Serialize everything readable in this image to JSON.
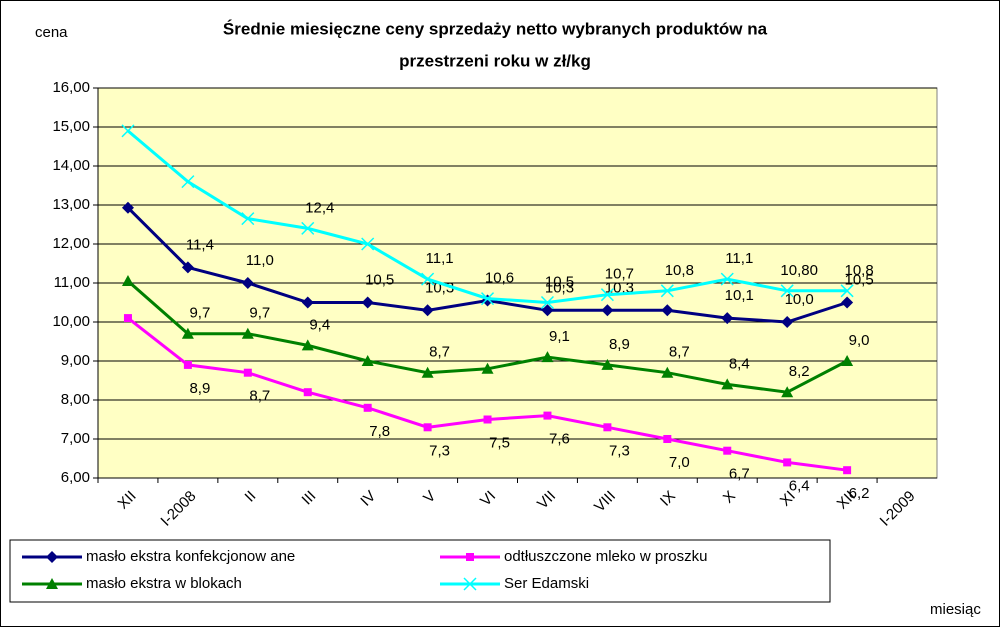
{
  "chart_data": {
    "type": "line",
    "title": [
      "Średnie miesięczne ceny sprzedaży netto  wybranych produktów na",
      "przestrzeni roku w zł/kg"
    ],
    "y_label": "cena",
    "x_label": "miesiąc",
    "categories": [
      "XII",
      "I-2008",
      "II",
      "III",
      "IV",
      "V",
      "VI",
      "VII",
      "VIII",
      "IX",
      "X",
      "XI",
      "XII",
      "I-2009"
    ],
    "ylim": [
      6,
      16
    ],
    "yticks": [
      {
        "value": 6,
        "label": "6,00"
      },
      {
        "value": 7,
        "label": "7,00"
      },
      {
        "value": 8,
        "label": "8,00"
      },
      {
        "value": 9,
        "label": "9,00"
      },
      {
        "value": 10,
        "label": "10,00"
      },
      {
        "value": 11,
        "label": "11,00"
      },
      {
        "value": 12,
        "label": "12,00"
      },
      {
        "value": 13,
        "label": "13,00"
      },
      {
        "value": 14,
        "label": "14,00"
      },
      {
        "value": 15,
        "label": "15,00"
      },
      {
        "value": 16,
        "label": "16,00"
      }
    ],
    "grid": true,
    "legend": "bottom",
    "series": [
      {
        "name": "masło ekstra konfekcjonow ane",
        "color": "#000080",
        "marker": "diamond",
        "values": [
          12.93,
          11.4,
          11.0,
          10.5,
          10.5,
          10.3,
          10.55,
          10.3,
          10.3,
          10.3,
          10.1,
          10.0,
          10.5,
          null
        ],
        "value_labels": [
          null,
          "11,4",
          "11,0",
          null,
          "10,5",
          "10,3",
          null,
          "10,3",
          "10,3",
          null,
          "10,1",
          "10,0",
          "10,5",
          null
        ]
      },
      {
        "name": "odtłuszczone mleko w  proszku",
        "color": "#ff00ff",
        "marker": "square",
        "values": [
          10.1,
          8.9,
          8.7,
          8.2,
          7.8,
          7.3,
          7.5,
          7.6,
          7.3,
          7.0,
          6.7,
          6.4,
          6.2,
          null
        ],
        "value_labels": [
          null,
          "8,9",
          "8,7",
          null,
          "7,8",
          "7,3",
          "7,5",
          "7,6",
          "7,3",
          "7,0",
          "6,7",
          "6,4",
          "6,2",
          null
        ]
      },
      {
        "name": "masło ekstra w  blokach",
        "color": "#008000",
        "marker": "triangle",
        "values": [
          11.05,
          9.7,
          9.7,
          9.4,
          9.0,
          8.7,
          8.8,
          9.1,
          8.9,
          8.7,
          8.4,
          8.2,
          9.0,
          null
        ],
        "value_labels": [
          null,
          "9,7",
          "9,7",
          "9,4",
          null,
          "8,7",
          null,
          "9,1",
          "8,9",
          "8,7",
          "8,4",
          "8,2",
          "9,0",
          null
        ]
      },
      {
        "name": "Ser Edamski",
        "color": "#00ffff",
        "marker": "x",
        "values": [
          14.9,
          13.6,
          12.65,
          12.4,
          12.0,
          11.1,
          10.6,
          10.5,
          10.7,
          10.8,
          11.1,
          10.8,
          10.8,
          null
        ],
        "value_labels": [
          null,
          null,
          null,
          "12,4",
          null,
          "11,1",
          "10,6",
          "10,5",
          "10,7",
          "10,8",
          "11,1",
          "10,80",
          "10,8",
          null
        ]
      }
    ]
  }
}
